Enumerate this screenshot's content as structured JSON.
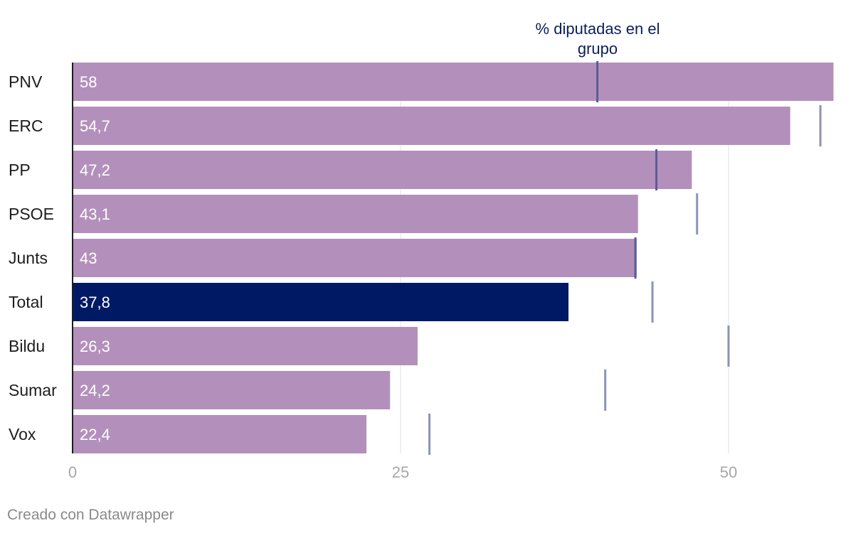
{
  "chart_data": {
    "type": "bar",
    "orientation": "horizontal",
    "categories": [
      "PNV",
      "ERC",
      "PP",
      "PSOE",
      "Junts",
      "Total",
      "Bildu",
      "Sumar",
      "Vox"
    ],
    "series": [
      {
        "values": [
          58,
          54.7,
          47.2,
          43.1,
          43,
          37.8,
          26.3,
          24.2,
          22.4
        ],
        "value_labels": [
          "58",
          "54,7",
          "47,2",
          "43,1",
          "43",
          "37,8",
          "26,3",
          "24,2",
          "22,4"
        ]
      },
      {
        "name": "% diputadas en el grupo",
        "type": "marker",
        "values": [
          40,
          57,
          44.5,
          47.6,
          42.9,
          44.2,
          50,
          40.6,
          27.2
        ]
      }
    ],
    "highlight_category": "Total",
    "xlim": [
      0,
      58
    ],
    "xticks": [
      0,
      25,
      50
    ],
    "xtick_labels": [
      "0",
      "25",
      "50"
    ],
    "marker_label_lines": [
      "% diputadas en el",
      "grupo"
    ],
    "grid": true,
    "colors": {
      "bar": "#b390bb",
      "highlight": "#001965",
      "marker": "#8c93b8",
      "marker_overlap": "#5b5c93",
      "grid": "#e2e2e2",
      "axis": "#1d1d1d"
    }
  },
  "footer": {
    "credit": "Creado con Datawrapper"
  }
}
